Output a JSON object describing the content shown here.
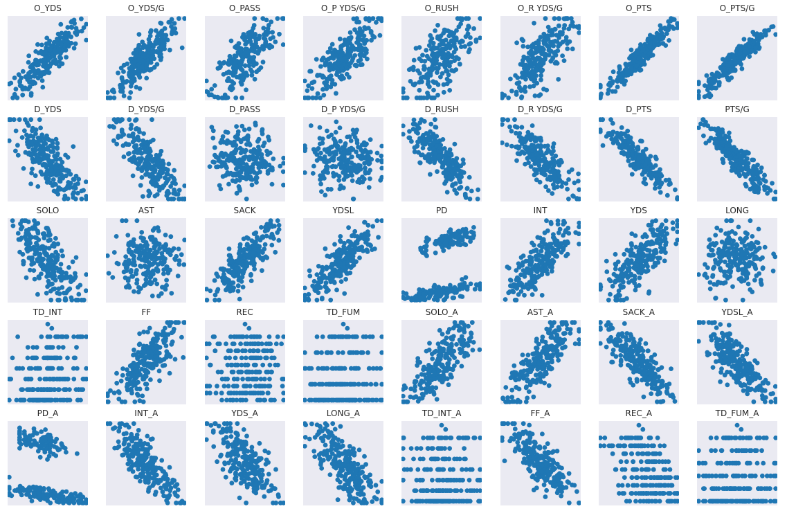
{
  "figure": {
    "background_color": "#ffffff",
    "axes_background_color": "#eaeaf2",
    "marker_color": "#1f77b4",
    "grid": false,
    "ticks": "hidden"
  },
  "chart_data": [
    {
      "type": "scatter",
      "title": "O_YDS",
      "pattern": "positive",
      "spread": 0.55
    },
    {
      "type": "scatter",
      "title": "O_YDS/G",
      "pattern": "positive",
      "spread": 0.55
    },
    {
      "type": "scatter",
      "title": "O_PASS",
      "pattern": "positive",
      "spread": 0.8
    },
    {
      "type": "scatter",
      "title": "O_P YDS/G",
      "pattern": "positive",
      "spread": 0.75
    },
    {
      "type": "scatter",
      "title": "O_RUSH",
      "pattern": "positive",
      "spread": 0.9
    },
    {
      "type": "scatter",
      "title": "O_R YDS/G",
      "pattern": "positive",
      "spread": 0.9
    },
    {
      "type": "scatter",
      "title": "O_PTS",
      "pattern": "positive",
      "spread": 0.35
    },
    {
      "type": "scatter",
      "title": "O_PTS/G",
      "pattern": "positive",
      "spread": 0.35
    },
    {
      "type": "scatter",
      "title": "D_YDS",
      "pattern": "negative",
      "spread": 0.8
    },
    {
      "type": "scatter",
      "title": "D_YDS/G",
      "pattern": "negative",
      "spread": 0.8
    },
    {
      "type": "scatter",
      "title": "D_PASS",
      "pattern": "cloud",
      "spread": 0.9
    },
    {
      "type": "scatter",
      "title": "D_P YDS/G",
      "pattern": "cloud",
      "spread": 0.9
    },
    {
      "type": "scatter",
      "title": "D_RUSH",
      "pattern": "negative",
      "spread": 0.6
    },
    {
      "type": "scatter",
      "title": "D_R YDS/G",
      "pattern": "negative",
      "spread": 0.6
    },
    {
      "type": "scatter",
      "title": "D_PTS",
      "pattern": "negative",
      "spread": 0.45
    },
    {
      "type": "scatter",
      "title": "PTS/G",
      "pattern": "negative",
      "spread": 0.45
    },
    {
      "type": "scatter",
      "title": "SOLO",
      "pattern": "negative",
      "spread": 0.95
    },
    {
      "type": "scatter",
      "title": "AST",
      "pattern": "cloud",
      "spread": 0.9
    },
    {
      "type": "scatter",
      "title": "SACK",
      "pattern": "positive",
      "spread": 0.6
    },
    {
      "type": "scatter",
      "title": "YDSL",
      "pattern": "positive",
      "spread": 0.6
    },
    {
      "type": "scatter",
      "title": "PD",
      "pattern": "two-bands-up",
      "spread": 0.5
    },
    {
      "type": "scatter",
      "title": "INT",
      "pattern": "positive",
      "spread": 0.7
    },
    {
      "type": "scatter",
      "title": "YDS",
      "pattern": "positive",
      "spread": 0.8
    },
    {
      "type": "scatter",
      "title": "LONG",
      "pattern": "cloud",
      "spread": 0.95
    },
    {
      "type": "scatter",
      "title": "TD_INT",
      "pattern": "discrete-up",
      "levels": 7
    },
    {
      "type": "scatter",
      "title": "FF",
      "pattern": "positive",
      "spread": 0.8
    },
    {
      "type": "scatter",
      "title": "REC",
      "pattern": "discrete-cloud",
      "levels": 10
    },
    {
      "type": "scatter",
      "title": "TD_FUM",
      "pattern": "discrete-flat",
      "levels": 5
    },
    {
      "type": "scatter",
      "title": "SOLO_A",
      "pattern": "positive",
      "spread": 0.8
    },
    {
      "type": "scatter",
      "title": "AST_A",
      "pattern": "positive",
      "spread": 0.8
    },
    {
      "type": "scatter",
      "title": "SACK_A",
      "pattern": "negative",
      "spread": 0.7
    },
    {
      "type": "scatter",
      "title": "YDSL_A",
      "pattern": "negative",
      "spread": 0.7
    },
    {
      "type": "scatter",
      "title": "PD_A",
      "pattern": "two-bands-down",
      "spread": 0.5
    },
    {
      "type": "scatter",
      "title": "INT_A",
      "pattern": "negative",
      "spread": 0.7
    },
    {
      "type": "scatter",
      "title": "YDS_A",
      "pattern": "negative",
      "spread": 0.8
    },
    {
      "type": "scatter",
      "title": "LONG_A",
      "pattern": "negative",
      "spread": 0.9
    },
    {
      "type": "scatter",
      "title": "TD_INT_A",
      "pattern": "discrete-flat",
      "levels": 7
    },
    {
      "type": "scatter",
      "title": "FF_A",
      "pattern": "negative",
      "spread": 0.7
    },
    {
      "type": "scatter",
      "title": "REC_A",
      "pattern": "negative-discrete",
      "levels": 9
    },
    {
      "type": "scatter",
      "title": "TD_FUM_A",
      "pattern": "discrete-flat",
      "levels": 6
    }
  ]
}
